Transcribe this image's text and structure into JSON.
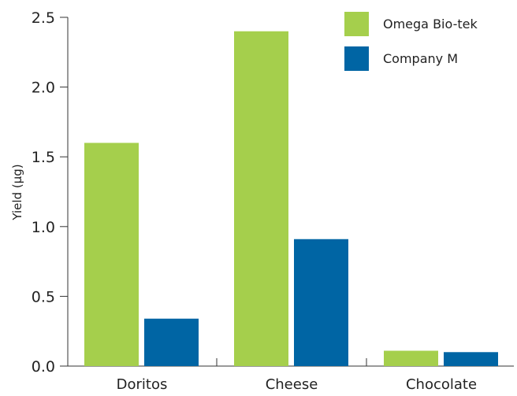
{
  "chart_data": {
    "type": "bar",
    "categories": [
      "Doritos",
      "Cheese",
      "Chocolate"
    ],
    "series": [
      {
        "name": "Omega Bio-tek",
        "values": [
          1.6,
          2.4,
          0.11
        ],
        "color": "#a5cf4c"
      },
      {
        "name": "Company M",
        "values": [
          0.34,
          0.91,
          0.1
        ],
        "color": "#0065a4"
      }
    ],
    "ylabel": "Yield (µg)",
    "xlabel": "",
    "ylim": [
      0,
      2.5
    ],
    "yticks": [
      0.0,
      0.5,
      1.0,
      1.5,
      2.0,
      2.5
    ],
    "ytick_labels": [
      "0.0",
      "0.5",
      "1.0",
      "1.5",
      "2.0",
      "2.5"
    ],
    "grid": false,
    "legend_position": "top-right"
  }
}
